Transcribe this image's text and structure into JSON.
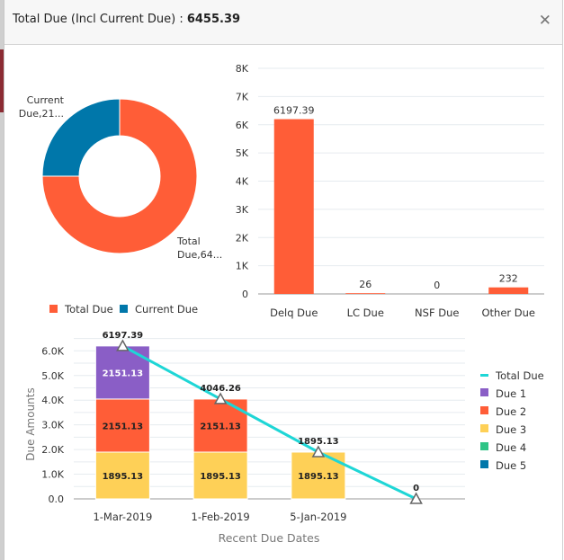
{
  "dialog": {
    "title_label": "Total Due (Incl Current Due) : ",
    "title_value": "6455.39",
    "close_icon": "close-icon"
  },
  "chart_data": [
    {
      "type": "pie",
      "variant": "donut",
      "slices": [
        {
          "name": "Total Due",
          "value": 6455.39,
          "color": "#ff5d37",
          "label_line1": "Total",
          "label_line2": "Due,64..."
        },
        {
          "name": "Current Due",
          "value": 2151.13,
          "color": "#0077aa",
          "label_line1": "Current",
          "label_line2": "Due,21..."
        }
      ],
      "legend": [
        "Total Due",
        "Current Due"
      ],
      "legend_position": "bottom"
    },
    {
      "type": "bar",
      "categories": [
        "Delq Due",
        "LC Due",
        "NSF Due",
        "Other Due"
      ],
      "values": [
        6197.39,
        26,
        0,
        232
      ],
      "value_labels": [
        "6197.39",
        "26",
        "0",
        "232"
      ],
      "color": "#ff5d37",
      "ylim": [
        0,
        8000
      ],
      "yticks": [
        0,
        1000,
        2000,
        3000,
        4000,
        5000,
        6000,
        7000,
        8000
      ],
      "ytick_labels": [
        "0",
        "1K",
        "2K",
        "3K",
        "4K",
        "5K",
        "6K",
        "7K",
        "8K"
      ],
      "grid": true
    },
    {
      "type": "bar",
      "stacked": true,
      "categories": [
        "1-Mar-2019",
        "1-Feb-2019",
        "5-Jan-2019",
        ""
      ],
      "xlabel": "Recent Due Dates",
      "ylabel": "Due Amounts",
      "ylim": [
        0,
        6500
      ],
      "yticks": [
        0,
        1000,
        2000,
        3000,
        4000,
        5000,
        6000
      ],
      "ytick_labels": [
        "0.0",
        "1.0K",
        "2.0K",
        "3.0K",
        "4.0K",
        "5.0K",
        "6.0K"
      ],
      "grid": true,
      "series": [
        {
          "name": "Due 3",
          "color": "#fed057",
          "values": [
            1895.13,
            1895.13,
            1895.13,
            0
          ],
          "labels": [
            "1895.13",
            "1895.13",
            "1895.13",
            ""
          ]
        },
        {
          "name": "Due 2",
          "color": "#ff5d37",
          "values": [
            2151.13,
            2151.13,
            0,
            0
          ],
          "labels": [
            "2151.13",
            "2151.13",
            "",
            ""
          ]
        },
        {
          "name": "Due 1",
          "color": "#8a5ec6",
          "values": [
            2151.13,
            0,
            0,
            0
          ],
          "labels": [
            "2151.13",
            "",
            "",
            ""
          ]
        },
        {
          "name": "Due 4",
          "color": "#2fc486",
          "values": [
            0,
            0,
            0,
            0
          ],
          "labels": [
            "",
            "",
            "",
            ""
          ]
        },
        {
          "name": "Due 5",
          "color": "#0077aa",
          "values": [
            0,
            0,
            0,
            0
          ],
          "labels": [
            "",
            "",
            "",
            ""
          ]
        }
      ],
      "line_series": {
        "name": "Total Due",
        "color": "#1ed6d6",
        "values": [
          6197.39,
          4046.26,
          1895.13,
          0
        ],
        "labels": [
          "6197.39",
          "4046.26",
          "1895.13",
          "0"
        ],
        "marker": "triangle"
      },
      "legend": [
        "Total Due",
        "Due 1",
        "Due 2",
        "Due 3",
        "Due 4",
        "Due 5"
      ],
      "legend_position": "right"
    }
  ]
}
